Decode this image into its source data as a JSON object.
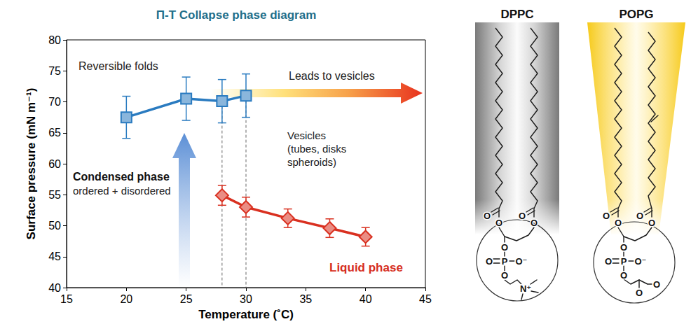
{
  "chart_data": {
    "type": "line",
    "title": "Π-T Collapse phase diagram",
    "x_label": "Temperature (˚C)",
    "y_label": "Surface pressure (mN m⁻¹)",
    "xlim": [
      15,
      45
    ],
    "xticks": [
      15,
      20,
      25,
      30,
      35,
      40,
      45
    ],
    "ylim": [
      40,
      80
    ],
    "yticks": [
      40,
      45,
      50,
      55,
      60,
      65,
      70,
      75,
      80
    ],
    "grid": false,
    "series": [
      {
        "color": "#2a7bc0",
        "marker": "square",
        "line_style": "solid",
        "x": [
          20,
          25,
          28,
          30
        ],
        "values": [
          67.5,
          70.5,
          70.1,
          71.0
        ],
        "errors": [
          3.4,
          3.5,
          3.5,
          3.5
        ]
      },
      {
        "color": "#d93020",
        "marker": "diamond",
        "line_style": "solid",
        "x": [
          28,
          30,
          33.5,
          37,
          40
        ],
        "values": [
          54.9,
          53.0,
          51.2,
          49.6,
          48.2
        ],
        "errors": [
          1.6,
          1.6,
          1.5,
          1.5,
          1.5
        ]
      }
    ],
    "annotations": [
      "Reversible folds",
      "Leads to vesicles",
      "Condensed phase",
      "ordered + disordered",
      "Vesicles",
      "(tubes, disks",
      "spheroids)",
      "Liquid phase"
    ]
  },
  "structures": [
    {
      "name": "DPPC",
      "atoms": [
        "O",
        "O",
        "O",
        "O",
        "O",
        "O",
        "P",
        "O⁻",
        "O",
        "N⁺"
      ]
    },
    {
      "name": "POPG",
      "atoms": [
        "O",
        "O",
        "O",
        "O",
        "O",
        "O",
        "P",
        "O⁻",
        "O",
        "O",
        "O"
      ]
    }
  ]
}
